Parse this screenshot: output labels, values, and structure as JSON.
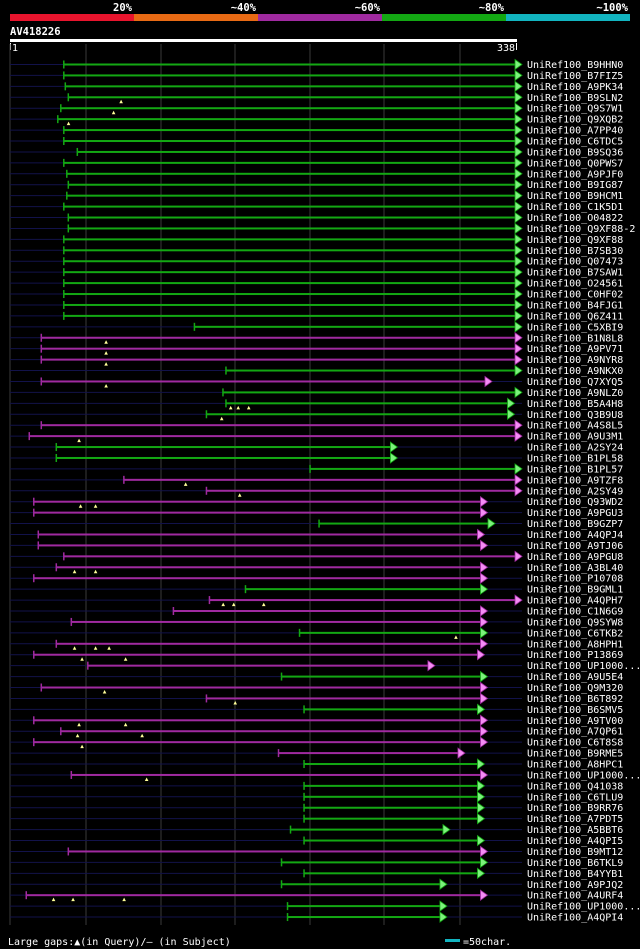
{
  "query": {
    "id": "AV418226",
    "start_label": "1",
    "end_label": "338",
    "length": 338
  },
  "legend_colors": {
    "red": "#e8142d",
    "orange": "#e86a14",
    "purple": "#a02aa0",
    "green": "#13a813",
    "cyan": "#12b4c0",
    "navy": "#12124a",
    "green_head": "#7cf27c",
    "purple_head": "#f48cf4",
    "white": "#ffffff"
  },
  "identity_scale": [
    {
      "label": "20%",
      "color": "#e8142d"
    },
    {
      "label": "~40%",
      "color": "#e86a14"
    },
    {
      "label": "~60%",
      "color": "#a02aa0"
    },
    {
      "label": "~80%",
      "color": "#13a813"
    },
    {
      "label": "~100%",
      "color": "#12b4c0"
    }
  ],
  "footer": {
    "gaps_text": "Large gaps:▲(in Query)/– (in Subject)",
    "scale_text": "=50char."
  },
  "chart_data": {
    "type": "alignment",
    "title": "AV418226",
    "x_range": [
      1,
      338
    ],
    "grid": true,
    "hits": [
      {
        "name": "UniRef100_B9HHN0",
        "start": 37,
        "end": 338,
        "color": "green"
      },
      {
        "name": "UniRef100_B7FIZ5",
        "start": 37,
        "end": 338,
        "color": "green"
      },
      {
        "name": "UniRef100_A9PK34",
        "start": 38,
        "end": 338,
        "color": "green"
      },
      {
        "name": "UniRef100_B9SLN2",
        "start": 40,
        "end": 338,
        "color": "green",
        "gaps": [
          75
        ]
      },
      {
        "name": "UniRef100_Q9S7W1",
        "start": 35,
        "end": 338,
        "color": "green",
        "gaps": [
          70
        ]
      },
      {
        "name": "UniRef100_Q9XQB2",
        "start": 33,
        "end": 338,
        "color": "green",
        "gaps": [
          40
        ]
      },
      {
        "name": "UniRef100_A7PP40",
        "start": 37,
        "end": 338,
        "color": "green"
      },
      {
        "name": "UniRef100_C6TDC5",
        "start": 37,
        "end": 338,
        "color": "green"
      },
      {
        "name": "UniRef100_B9SQ36",
        "start": 46,
        "end": 338,
        "color": "green"
      },
      {
        "name": "UniRef100_Q0PWS7",
        "start": 37,
        "end": 338,
        "color": "green"
      },
      {
        "name": "UniRef100_A9PJF0",
        "start": 39,
        "end": 338,
        "color": "green"
      },
      {
        "name": "UniRef100_B9IG87",
        "start": 40,
        "end": 338,
        "color": "green"
      },
      {
        "name": "UniRef100_B9HCM1",
        "start": 39,
        "end": 338,
        "color": "green"
      },
      {
        "name": "UniRef100_C1K5D1",
        "start": 37,
        "end": 338,
        "color": "green"
      },
      {
        "name": "UniRef100_O04822",
        "start": 40,
        "end": 338,
        "color": "green"
      },
      {
        "name": "UniRef100_Q9XF88-2",
        "start": 40,
        "end": 338,
        "color": "green"
      },
      {
        "name": "UniRef100_Q9XF88",
        "start": 37,
        "end": 338,
        "color": "green"
      },
      {
        "name": "UniRef100_B7SB30",
        "start": 37,
        "end": 338,
        "color": "green"
      },
      {
        "name": "UniRef100_Q07473",
        "start": 37,
        "end": 338,
        "color": "green"
      },
      {
        "name": "UniRef100_B7SAW1",
        "start": 37,
        "end": 338,
        "color": "green"
      },
      {
        "name": "UniRef100_O24561",
        "start": 37,
        "end": 338,
        "color": "green"
      },
      {
        "name": "UniRef100_C0HF02",
        "start": 37,
        "end": 338,
        "color": "green"
      },
      {
        "name": "UniRef100_B4FJG1",
        "start": 37,
        "end": 338,
        "color": "green"
      },
      {
        "name": "UniRef100_Q6Z411",
        "start": 37,
        "end": 338,
        "color": "green"
      },
      {
        "name": "UniRef100_C5XBI9",
        "start": 124,
        "end": 338,
        "color": "green"
      },
      {
        "name": "UniRef100_B1N8L8",
        "start": 22,
        "end": 338,
        "color": "purple",
        "gaps": [
          65
        ]
      },
      {
        "name": "UniRef100_A9PV71",
        "start": 22,
        "end": 338,
        "color": "purple",
        "gaps": [
          65
        ]
      },
      {
        "name": "UniRef100_A9NYR8",
        "start": 22,
        "end": 338,
        "color": "purple",
        "gaps": [
          65
        ]
      },
      {
        "name": "UniRef100_A9NKX0",
        "start": 145,
        "end": 338,
        "color": "green"
      },
      {
        "name": "UniRef100_Q7XYQ5",
        "start": 22,
        "end": 318,
        "color": "purple",
        "gaps": [
          65
        ]
      },
      {
        "name": "UniRef100_A9NLZ0",
        "start": 143,
        "end": 338,
        "color": "green"
      },
      {
        "name": "UniRef100_B5A4H8",
        "start": 145,
        "end": 333,
        "color": "green",
        "gaps": [
          148,
          153,
          160
        ]
      },
      {
        "name": "UniRef100_Q3B9U8",
        "start": 132,
        "end": 333,
        "color": "green",
        "gaps": [
          142
        ]
      },
      {
        "name": "UniRef100_A4S8L5",
        "start": 22,
        "end": 338,
        "color": "purple"
      },
      {
        "name": "UniRef100_A9U3M1",
        "start": 14,
        "end": 338,
        "color": "purple",
        "gaps": [
          47
        ]
      },
      {
        "name": "UniRef100_A2SY24",
        "start": 32,
        "end": 255,
        "color": "green"
      },
      {
        "name": "UniRef100_B1PL58",
        "start": 32,
        "end": 255,
        "color": "green"
      },
      {
        "name": "UniRef100_B1PL57",
        "start": 201,
        "end": 338,
        "color": "green"
      },
      {
        "name": "UniRef100_A9TZF8",
        "start": 77,
        "end": 338,
        "color": "purple",
        "gaps": [
          118
        ]
      },
      {
        "name": "UniRef100_A2SY49",
        "start": 132,
        "end": 338,
        "color": "purple",
        "gaps": [
          154
        ]
      },
      {
        "name": "UniRef100_Q93WD2",
        "start": 17,
        "end": 315,
        "color": "purple",
        "gaps": [
          48,
          58
        ]
      },
      {
        "name": "UniRef100_A9PGU3",
        "start": 17,
        "end": 315,
        "color": "purple"
      },
      {
        "name": "UniRef100_B9GZP7",
        "start": 207,
        "end": 320,
        "color": "green"
      },
      {
        "name": "UniRef100_A4QPJ4",
        "start": 20,
        "end": 313,
        "color": "purple"
      },
      {
        "name": "UniRef100_A9TJ06",
        "start": 20,
        "end": 315,
        "color": "purple"
      },
      {
        "name": "UniRef100_A9PGU8",
        "start": 37,
        "end": 338,
        "color": "purple"
      },
      {
        "name": "UniRef100_A3BL40",
        "start": 32,
        "end": 315,
        "color": "purple",
        "gaps": [
          44,
          58
        ]
      },
      {
        "name": "UniRef100_P10708",
        "start": 17,
        "end": 315,
        "color": "purple"
      },
      {
        "name": "UniRef100_B9GML1",
        "start": 158,
        "end": 315,
        "color": "green"
      },
      {
        "name": "UniRef100_A4QPH7",
        "start": 134,
        "end": 338,
        "color": "purple",
        "gaps": [
          143,
          150,
          170
        ]
      },
      {
        "name": "UniRef100_C1N6G9",
        "start": 110,
        "end": 315,
        "color": "purple"
      },
      {
        "name": "UniRef100_Q9SYW8",
        "start": 42,
        "end": 315,
        "color": "purple"
      },
      {
        "name": "UniRef100_C6TKB2",
        "start": 194,
        "end": 315,
        "color": "green",
        "gaps": [
          298
        ]
      },
      {
        "name": "UniRef100_A8HPH1",
        "start": 32,
        "end": 315,
        "color": "purple",
        "gaps": [
          44,
          58,
          67
        ]
      },
      {
        "name": "UniRef100_P13869",
        "start": 17,
        "end": 313,
        "color": "purple",
        "gaps": [
          49,
          78
        ]
      },
      {
        "name": "UniRef100_UP1000...",
        "start": 53,
        "end": 280,
        "color": "purple"
      },
      {
        "name": "UniRef100_A9U5E4",
        "start": 182,
        "end": 315,
        "color": "green"
      },
      {
        "name": "UniRef100_Q9M320",
        "start": 22,
        "end": 315,
        "color": "purple",
        "gaps": [
          64
        ]
      },
      {
        "name": "UniRef100_B6T892",
        "start": 132,
        "end": 315,
        "color": "purple",
        "gaps": [
          151
        ]
      },
      {
        "name": "UniRef100_B6SMV5",
        "start": 197,
        "end": 313,
        "color": "green"
      },
      {
        "name": "UniRef100_A9TV00",
        "start": 17,
        "end": 315,
        "color": "purple",
        "gaps": [
          47,
          78
        ]
      },
      {
        "name": "UniRef100_A7QP61",
        "start": 35,
        "end": 315,
        "color": "purple",
        "gaps": [
          46,
          89
        ]
      },
      {
        "name": "UniRef100_C6T8S8",
        "start": 17,
        "end": 315,
        "color": "purple",
        "gaps": [
          49
        ]
      },
      {
        "name": "UniRef100_B9RME5",
        "start": 180,
        "end": 300,
        "color": "purple"
      },
      {
        "name": "UniRef100_A8HPC1",
        "start": 197,
        "end": 313,
        "color": "green"
      },
      {
        "name": "UniRef100_UP1000...",
        "start": 42,
        "end": 315,
        "color": "purple",
        "gaps": [
          92
        ]
      },
      {
        "name": "UniRef100_Q41038",
        "start": 197,
        "end": 313,
        "color": "green"
      },
      {
        "name": "UniRef100_C6TLU9",
        "start": 197,
        "end": 313,
        "color": "green"
      },
      {
        "name": "UniRef100_B9RR76",
        "start": 197,
        "end": 313,
        "color": "green"
      },
      {
        "name": "UniRef100_A7PDT5",
        "start": 197,
        "end": 313,
        "color": "green"
      },
      {
        "name": "UniRef100_A5BBT6",
        "start": 188,
        "end": 290,
        "color": "green"
      },
      {
        "name": "UniRef100_A4QPI5",
        "start": 197,
        "end": 313,
        "color": "green"
      },
      {
        "name": "UniRef100_B9MT12",
        "start": 40,
        "end": 315,
        "color": "purple"
      },
      {
        "name": "UniRef100_B6TKL9",
        "start": 182,
        "end": 315,
        "color": "green"
      },
      {
        "name": "UniRef100_B4YYB1",
        "start": 197,
        "end": 313,
        "color": "green"
      },
      {
        "name": "UniRef100_A9PJQ2",
        "start": 182,
        "end": 288,
        "color": "green"
      },
      {
        "name": "UniRef100_A4URF4",
        "start": 12,
        "end": 315,
        "color": "purple",
        "gaps": [
          30,
          43,
          77
        ]
      },
      {
        "name": "UniRef100_UP1000...",
        "start": 186,
        "end": 288,
        "color": "green"
      },
      {
        "name": "UniRef100_A4QPI4",
        "start": 186,
        "end": 288,
        "color": "green"
      }
    ]
  }
}
